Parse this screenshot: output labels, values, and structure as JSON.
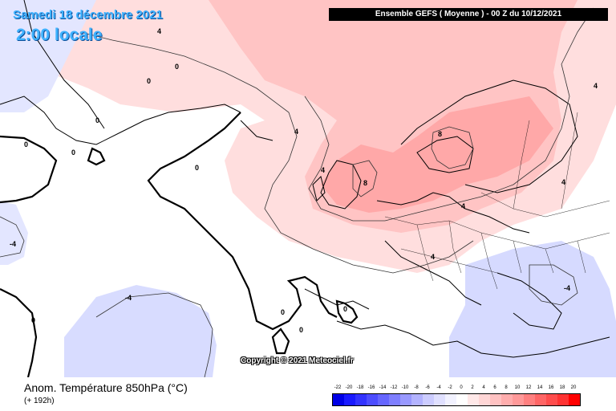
{
  "header": {
    "date": "Samedi 18 décembre 2021",
    "local_time": "2:00 locale",
    "run_info": "Ensemble GEFS  ( Moyenne )  -  00 Z du 10/12/2021"
  },
  "map": {
    "copyright": "Copyright © 2021 Meteociel.fr",
    "contour_labels": [
      "4",
      "0",
      "0",
      "0",
      "0",
      "0",
      "4",
      "0",
      "4",
      "4",
      "0",
      "0",
      "0",
      "0",
      "8",
      "8",
      "4",
      "4",
      "4",
      "-4",
      "-4",
      "-4"
    ]
  },
  "footer": {
    "variable": "Anom. Température 850hPa (°C)",
    "lead_time": "(+ 192h)"
  },
  "colorbar": {
    "labels": [
      "-22",
      "-20",
      "-18",
      "-16",
      "-14",
      "-12",
      "-10",
      "-8",
      "-6",
      "-4",
      "-2",
      "0",
      "2",
      "4",
      "6",
      "8",
      "10",
      "12",
      "14",
      "16",
      "18",
      "20"
    ],
    "colors": [
      "#0000e6",
      "#1a1aff",
      "#3333ff",
      "#4d4dff",
      "#6666ff",
      "#7f7fff",
      "#9999ff",
      "#b3b3ff",
      "#ccccff",
      "#e0e0ff",
      "#f2f2ff",
      "#ffffff",
      "#ffe8e8",
      "#ffd6d6",
      "#ffc2c2",
      "#ffadad",
      "#ff9999",
      "#ff8080",
      "#ff6666",
      "#ff4d4d",
      "#ff3333",
      "#ff0000"
    ]
  }
}
